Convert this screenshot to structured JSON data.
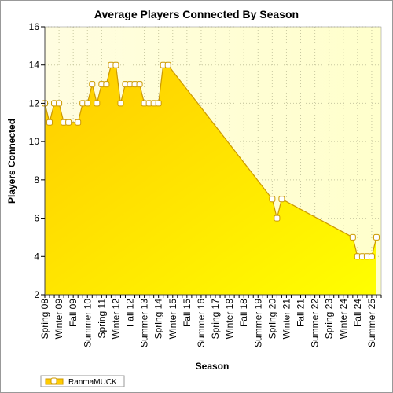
{
  "colors": {
    "plot_bg_left": "#fffde0",
    "plot_bg_right": "#ffffcc",
    "fill_top": "#ffcc00",
    "fill_bottom": "#ffff00",
    "line": "#cc9900",
    "marker_fill": "#ffffff",
    "grid": "#c8c8a0"
  },
  "legend": {
    "series_label": "RanmaMUCK"
  },
  "chart_data": {
    "type": "area",
    "title": "Average Players Connected By Season",
    "xlabel": "Season",
    "ylabel": "Players Connected",
    "ylim": [
      2,
      16
    ],
    "yticks": [
      2,
      4,
      6,
      8,
      10,
      12,
      14,
      16
    ],
    "xlim": [
      0,
      71
    ],
    "grid": true,
    "legend_position": "bottom-left",
    "xtick_labels": [
      {
        "x": 0,
        "label": "Spring 08"
      },
      {
        "x": 3,
        "label": "Winter 09"
      },
      {
        "x": 6,
        "label": "Fall 09"
      },
      {
        "x": 9,
        "label": "Summer 10"
      },
      {
        "x": 12,
        "label": "Spring 11"
      },
      {
        "x": 15,
        "label": "Winter 12"
      },
      {
        "x": 18,
        "label": "Fall 12"
      },
      {
        "x": 21,
        "label": "Summer 13"
      },
      {
        "x": 24,
        "label": "Spring 14"
      },
      {
        "x": 27,
        "label": "Winter 15"
      },
      {
        "x": 30,
        "label": "Fall 15"
      },
      {
        "x": 33,
        "label": "Summer 16"
      },
      {
        "x": 36,
        "label": "Spring 17"
      },
      {
        "x": 39,
        "label": "Winter 18"
      },
      {
        "x": 42,
        "label": "Fall 18"
      },
      {
        "x": 45,
        "label": "Summer 19"
      },
      {
        "x": 48,
        "label": "Spring 20"
      },
      {
        "x": 51,
        "label": "Winter 21"
      },
      {
        "x": 54,
        "label": "Fall 21"
      },
      {
        "x": 57,
        "label": "Summer 22"
      },
      {
        "x": 60,
        "label": "Spring 23"
      },
      {
        "x": 63,
        "label": "Winter 24"
      },
      {
        "x": 66,
        "label": "Fall 24"
      },
      {
        "x": 69,
        "label": "Summer 25"
      }
    ],
    "series": [
      {
        "name": "RanmaMUCK",
        "points": [
          {
            "x": 0,
            "y": 12
          },
          {
            "x": 1,
            "y": 11
          },
          {
            "x": 2,
            "y": 12
          },
          {
            "x": 3,
            "y": 12
          },
          {
            "x": 4,
            "y": 11
          },
          {
            "x": 5,
            "y": 11
          },
          {
            "x": 7,
            "y": 11
          },
          {
            "x": 8,
            "y": 12
          },
          {
            "x": 9,
            "y": 12
          },
          {
            "x": 10,
            "y": 13
          },
          {
            "x": 11,
            "y": 12
          },
          {
            "x": 12,
            "y": 13
          },
          {
            "x": 13,
            "y": 13
          },
          {
            "x": 14,
            "y": 14
          },
          {
            "x": 15,
            "y": 14
          },
          {
            "x": 16,
            "y": 12
          },
          {
            "x": 17,
            "y": 13
          },
          {
            "x": 18,
            "y": 13
          },
          {
            "x": 19,
            "y": 13
          },
          {
            "x": 20,
            "y": 13
          },
          {
            "x": 21,
            "y": 12
          },
          {
            "x": 22,
            "y": 12
          },
          {
            "x": 23,
            "y": 12
          },
          {
            "x": 24,
            "y": 12
          },
          {
            "x": 25,
            "y": 14
          },
          {
            "x": 26,
            "y": 14
          },
          {
            "x": 48,
            "y": 7
          },
          {
            "x": 49,
            "y": 6
          },
          {
            "x": 50,
            "y": 7
          },
          {
            "x": 65,
            "y": 5
          },
          {
            "x": 66,
            "y": 4
          },
          {
            "x": 67,
            "y": 4
          },
          {
            "x": 68,
            "y": 4
          },
          {
            "x": 69,
            "y": 4
          },
          {
            "x": 70,
            "y": 5
          }
        ]
      }
    ]
  }
}
